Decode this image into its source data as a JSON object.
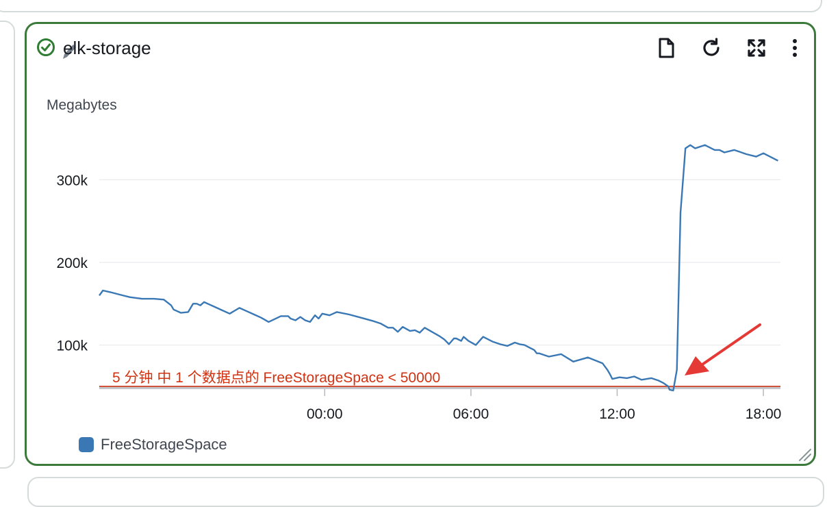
{
  "widget": {
    "title": "elk-storage",
    "border_color": "#3b7a3b",
    "status_icon": "check-circle-icon",
    "toolbar": [
      {
        "icon": "document-icon",
        "name": "view-logs-button"
      },
      {
        "icon": "refresh-icon",
        "name": "refresh-button"
      },
      {
        "icon": "expand-icon",
        "name": "fullscreen-button"
      },
      {
        "icon": "more-vertical-icon",
        "name": "more-options-button"
      }
    ]
  },
  "chart_data": {
    "type": "line",
    "ylabel": "Megabytes",
    "ylim": [
      45000,
      355000
    ],
    "yticks": [
      {
        "value": 100000,
        "label": "100k"
      },
      {
        "value": 200000,
        "label": "200k"
      },
      {
        "value": 300000,
        "label": "300k"
      }
    ],
    "xlim": [
      -9.25,
      18.7
    ],
    "xticks": [
      {
        "value": 0,
        "label": "00:00"
      },
      {
        "value": 6,
        "label": "06:00"
      },
      {
        "value": 12,
        "label": "12:00"
      },
      {
        "value": 18,
        "label": "18:00"
      }
    ],
    "grid": true,
    "legend_position": "bottom-left",
    "series": [
      {
        "name": "FreeStorageSpace",
        "color": "#3a78b5",
        "x": [
          -9.25,
          -9.1,
          -8.8,
          -8.4,
          -8.0,
          -7.5,
          -7.0,
          -6.6,
          -6.3,
          -6.2,
          -5.9,
          -5.6,
          -5.4,
          -5.25,
          -5.1,
          -4.95,
          -4.8,
          -4.5,
          -4.2,
          -3.9,
          -3.5,
          -3.2,
          -2.9,
          -2.6,
          -2.3,
          -1.8,
          -1.5,
          -1.4,
          -1.2,
          -1.0,
          -0.8,
          -0.6,
          -0.4,
          -0.25,
          -0.1,
          0.2,
          0.5,
          1.0,
          1.5,
          2.0,
          2.3,
          2.6,
          2.8,
          3.0,
          3.2,
          3.5,
          3.7,
          3.9,
          4.1,
          4.4,
          4.7,
          4.9,
          5.1,
          5.3,
          5.4,
          5.6,
          5.7,
          5.9,
          6.2,
          6.5,
          6.7,
          6.9,
          7.2,
          7.5,
          7.8,
          8.0,
          8.2,
          8.4,
          8.6,
          8.7,
          8.8,
          9.2,
          9.7,
          10.2,
          10.8,
          11.4,
          11.6,
          11.7,
          11.8,
          12.1,
          12.4,
          12.7,
          13.0,
          13.4,
          13.7,
          13.9,
          14.1,
          14.15,
          14.3,
          14.45,
          14.6,
          14.8,
          15.0,
          15.2,
          15.6,
          16.0,
          16.2,
          16.4,
          16.8,
          17.0,
          17.3,
          17.7,
          18.0,
          18.6
        ],
        "values": [
          160000,
          166000,
          164000,
          161000,
          158000,
          156000,
          156000,
          155000,
          148000,
          143000,
          139000,
          140000,
          150000,
          150000,
          148000,
          152000,
          150000,
          146000,
          142000,
          138000,
          145000,
          141000,
          137000,
          133000,
          128000,
          135000,
          135000,
          132000,
          130000,
          134000,
          130000,
          128000,
          136000,
          132000,
          138000,
          136000,
          140000,
          137000,
          133000,
          129000,
          126000,
          121000,
          121000,
          116000,
          122000,
          117000,
          118000,
          115000,
          121000,
          116000,
          111000,
          107000,
          101000,
          108000,
          108000,
          105000,
          110000,
          105000,
          100000,
          110000,
          107000,
          104000,
          101000,
          99000,
          103000,
          101000,
          100000,
          97000,
          94000,
          90000,
          90000,
          86000,
          89000,
          80000,
          85000,
          78000,
          70000,
          65000,
          59000,
          61000,
          60000,
          62000,
          58000,
          60000,
          57000,
          54000,
          50000,
          46000,
          45000,
          70000,
          260000,
          338000,
          342000,
          338000,
          342000,
          336000,
          336000,
          333000,
          336000,
          334000,
          331000,
          328000,
          332000,
          323000
        ],
        "threshold": {
          "value": 50000,
          "color": "#d13212",
          "label": "5 分钟 中 1 个数据点的 FreeStorageSpace < 50000"
        }
      }
    ]
  }
}
